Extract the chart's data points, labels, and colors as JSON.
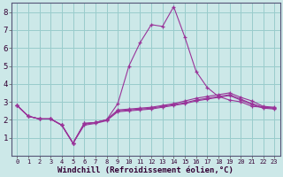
{
  "background_color": "#cce8e8",
  "grid_color": "#99cccc",
  "line_color": "#993399",
  "xlabel": "Windchill (Refroidissement éolien,°C)",
  "xlabel_fontsize": 6.5,
  "xlim": [
    -0.5,
    23.5
  ],
  "ylim": [
    0,
    8.5
  ],
  "xticks": [
    0,
    1,
    2,
    3,
    4,
    5,
    6,
    7,
    8,
    9,
    10,
    11,
    12,
    13,
    14,
    15,
    16,
    17,
    18,
    19,
    20,
    21,
    22,
    23
  ],
  "yticks": [
    1,
    2,
    3,
    4,
    5,
    6,
    7,
    8
  ],
  "tick_fontsize": 6,
  "lines": [
    {
      "x": [
        0,
        1,
        2,
        3,
        4,
        5,
        6,
        7,
        8,
        9,
        10,
        11,
        12,
        13,
        14,
        15,
        16,
        17,
        18,
        19,
        20,
        21,
        22,
        23
      ],
      "y": [
        2.8,
        2.2,
        2.05,
        2.05,
        1.7,
        0.7,
        1.8,
        1.85,
        2.0,
        2.9,
        5.0,
        6.3,
        7.3,
        7.2,
        8.3,
        6.6,
        4.7,
        3.8,
        3.3,
        3.1,
        3.0,
        2.75,
        2.7,
        2.65
      ]
    },
    {
      "x": [
        0,
        1,
        2,
        3,
        4,
        5,
        6,
        7,
        8,
        9,
        10,
        11,
        12,
        13,
        14,
        15,
        16,
        17,
        18,
        19,
        20,
        21,
        22,
        23
      ],
      "y": [
        2.8,
        2.2,
        2.05,
        2.05,
        1.7,
        0.7,
        1.8,
        1.85,
        2.0,
        2.55,
        2.6,
        2.65,
        2.7,
        2.8,
        2.9,
        3.05,
        3.2,
        3.3,
        3.4,
        3.5,
        3.25,
        3.05,
        2.75,
        2.7
      ]
    },
    {
      "x": [
        0,
        1,
        2,
        3,
        4,
        5,
        6,
        7,
        8,
        9,
        10,
        11,
        12,
        13,
        14,
        15,
        16,
        17,
        18,
        19,
        20,
        21,
        22,
        23
      ],
      "y": [
        2.8,
        2.2,
        2.05,
        2.05,
        1.7,
        0.7,
        1.75,
        1.85,
        2.0,
        2.5,
        2.55,
        2.6,
        2.65,
        2.75,
        2.85,
        2.95,
        3.1,
        3.2,
        3.3,
        3.4,
        3.15,
        2.9,
        2.7,
        2.65
      ]
    },
    {
      "x": [
        0,
        1,
        2,
        3,
        4,
        5,
        6,
        7,
        8,
        9,
        10,
        11,
        12,
        13,
        14,
        15,
        16,
        17,
        18,
        19,
        20,
        21,
        22,
        23
      ],
      "y": [
        2.8,
        2.2,
        2.05,
        2.05,
        1.7,
        0.7,
        1.7,
        1.8,
        1.95,
        2.45,
        2.5,
        2.55,
        2.6,
        2.7,
        2.8,
        2.9,
        3.05,
        3.15,
        3.25,
        3.35,
        3.1,
        2.85,
        2.65,
        2.6
      ]
    }
  ]
}
